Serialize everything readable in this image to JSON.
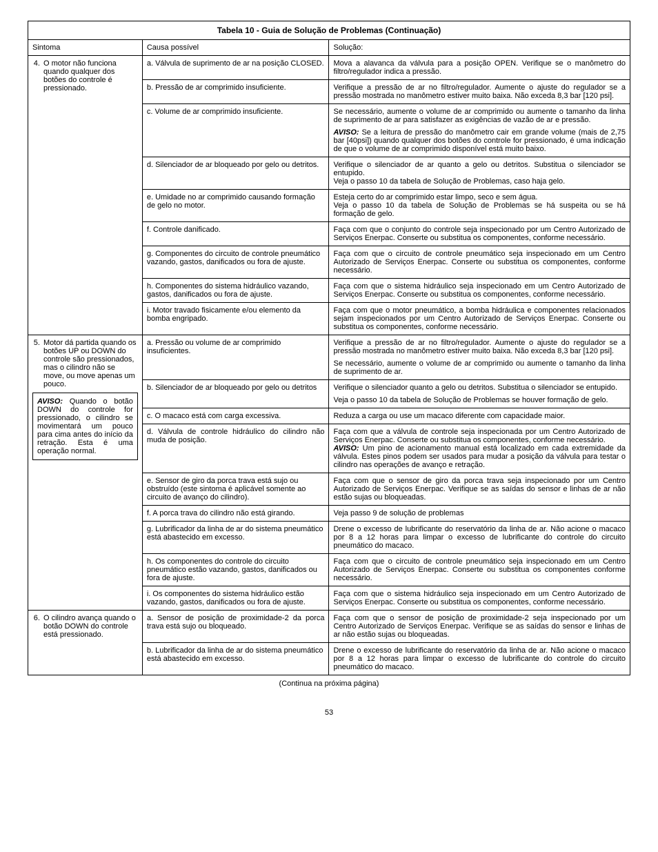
{
  "table_title": "Tabela 10 - Guia de Solução de Problemas (Continuação)",
  "headers": {
    "c0": "Sintoma",
    "c1": "Causa possível",
    "c2": "Solução:"
  },
  "s4": {
    "symptom": "O motor não funciona quando qualquer dos botões do controle é pressionado.",
    "a": {
      "cause": "a. Válvula de suprimento de ar na posição CLOSED.",
      "sol": "Mova a alavanca da válvula para a posição OPEN. Verifique se o manômetro do filtro/regulador indica a pressão."
    },
    "b": {
      "cause": "b. Pressão de ar comprimido insuficiente.",
      "sol": "Verifique a pressão de ar no filtro/regulador. Aumente o ajuste do regulador se a pressão mostrada no manômetro estiver muito baixa. Não exceda 8,3 bar [120 psi]."
    },
    "c": {
      "cause": "c. Volume de ar comprimido insuficiente.",
      "sol1": "Se necessário, aumente o volume de ar comprimido ou aumente o tamanho da linha de suprimento de ar para satisfazer as exigências de vazão de ar e pressão.",
      "aviso_label": "AVISO:",
      "aviso": " Se a leitura de pressão do manômetro cair em grande volume (mais de 2,75 bar [40psi]) quando qualquer dos botões do controle for pressionado, é uma indicação de que o volume de ar comprimido disponível está muito baixo."
    },
    "d": {
      "cause": "d. Silenciador de ar bloqueado por gelo ou detritos.",
      "sol1": "Verifique o silenciador de ar quanto a gelo ou detritos. Substitua o silenciador se entupido.",
      "sol2": "Veja o passo 10 da tabela de Solução de Problemas, caso haja gelo."
    },
    "e": {
      "cause": "e. Umidade no ar comprimido causando formação de gelo no motor.",
      "sol1": "Esteja certo do ar comprimido estar limpo, seco e sem água.",
      "sol2": "Veja o passo 10 da tabela de Solução de Problemas se há suspeita ou se há formação de gelo."
    },
    "f": {
      "cause": "f. Controle danificado.",
      "sol": "Faça com que o conjunto do controle seja inspecionado por um Centro Autorizado de Serviços Enerpac. Conserte ou substitua os componentes, conforme necessário."
    },
    "g": {
      "cause": "g. Componentes do circuito de controle pneumático vazando, gastos, danificados ou fora de ajuste.",
      "sol": "Faça com que o circuito de controle pneumático seja inspecionado em um Centro Autorizado de Serviços Enerpac. Conserte ou substitua os componentes, conforme necessário."
    },
    "h": {
      "cause": "h. Componentes do sistema hidráulico vazando, gastos, danificados ou fora de ajuste.",
      "sol": "Faça com que o sistema hidráulico seja inspecionado em um Centro Autorizado de Serviços Enerpac. Conserte ou substitua os componentes, conforme necessário."
    },
    "i": {
      "cause": "i. Motor travado fisicamente e/ou  elemento da bomba engripado.",
      "sol": "Faça com que o motor pneumático, a bomba hidráulica e componentes relacionados sejam inspecionados por um Centro Autorizado de Serviços Enerpac. Conserte ou substitua os componentes, conforme necessário."
    }
  },
  "s5": {
    "symptom": "Motor dá partida quando os botões UP ou DOWN do controle são pressionados, mas o cilindro não se move, ou move apenas um pouco.",
    "aviso_label": "AVISO:",
    "aviso_text": " Quando o botão DOWN do controle for pressionado, o cilindro se movimentará um pouco para cima antes do início da retração. Esta é uma operação normal.",
    "a": {
      "cause": "a. Pressão ou volume de ar comprimido insuficientes.",
      "sol1": "Verifique a pressão de ar no filtro/regulador. Aumente o ajuste do regulador se a pressão mostrada no manômetro estiver muito baixa. Não exceda 8,3 bar [120 psi].",
      "sol2": "Se necessário, aumente o volume de ar comprimido ou aumente o tamanho da linha de suprimento de ar."
    },
    "b": {
      "cause": "b. Silenciador de ar bloqueado por gelo ou detritos",
      "sol1": "Verifique o silenciador quanto a gelo ou detritos. Substitua o silenciador se entupido.",
      "sol2": "Veja o passo 10 da tabela de Solução de Problemas se houver formação de gelo."
    },
    "c": {
      "cause": "c. O macaco está com carga excessiva.",
      "sol": "Reduza a carga ou use um macaco diferente com capacidade maior."
    },
    "d": {
      "cause": "d. Válvula de controle hidráulico do cilindro não muda de posição.",
      "sol_pre": "Faça com que a válvula de controle seja inspecionada por um Centro Autorizado de Serviços Enerpac. Conserte ou substitua os componentes, conforme necessário.",
      "aviso_label": "AVISO:",
      "sol_post": " Um pino de acionamento manual  está localizado em cada extremidade da válvula. Estes pinos podem ser usados para mudar a posição da válvula para testar o cilindro nas operações de avanço e retração."
    },
    "e": {
      "cause": "e. Sensor de giro da porca trava está sujo ou obstruído (este sintoma é aplicável somente ao circuito de avanço do cilindro).",
      "sol": "Faça com que o sensor de giro da porca trava seja inspecionado por um Centro Autorizado de Serviços Enerpac. Verifique se as saídas do sensor e linhas de ar não estão sujas ou bloqueadas."
    },
    "f": {
      "cause": "f. A porca trava do cilindro não está girando.",
      "sol": "Veja passo 9 de solução de problemas"
    },
    "g": {
      "cause": "g. Lubrificador da linha de ar do sistema pneumático está abastecido em excesso.",
      "sol": "Drene o excesso de lubrificante do reservatório da linha de ar. Não acione o macaco por 8 a 12 horas para limpar o excesso de lubrificante do controle do circuito pneumático do macaco."
    },
    "h": {
      "cause": "h. Os componentes do controle do circuito pneumático estão vazando, gastos, danificados ou fora de ajuste.",
      "sol": "Faça com que o circuito de controle pneumático seja inspecionado em um Centro Autorizado de Serviços Enerpac. Conserte ou substitua os componentes conforme necessário."
    },
    "i": {
      "cause": "i. Os componentes do sistema hidráulico estão vazando, gastos, danificados ou fora de ajuste.",
      "sol": "Faça com que o sistema hidráulico seja inspecionado em um Centro Autorizado de Serviços Enerpac. Conserte ou substitua os componentes, conforme necessário."
    }
  },
  "s6": {
    "symptom": "O cilindro avança quando o botão DOWN do controle está pressionado.",
    "a": {
      "cause": "a. Sensor de posição de proximidade-2 da porca trava está sujo ou bloqueado.",
      "sol": "Faça com que o sensor de posição de proximidade-2 seja inspecionado por um Centro Autorizado de Serviços Enerpac. Verifique se as saídas do sensor e linhas de ar não estão sujas ou bloqueadas."
    },
    "b": {
      "cause": "b. Lubrificador da linha de ar do sistema pneumático está abastecido em excesso.",
      "sol": "Drene o excesso de lubrificante do reservatório da linha de ar. Não acione o macaco por 8 a 12 horas para limpar o excesso de lubrificante do controle do circuito pneumático do macaco."
    }
  },
  "continua": "(Continua na próxima página)",
  "pageno": "53"
}
